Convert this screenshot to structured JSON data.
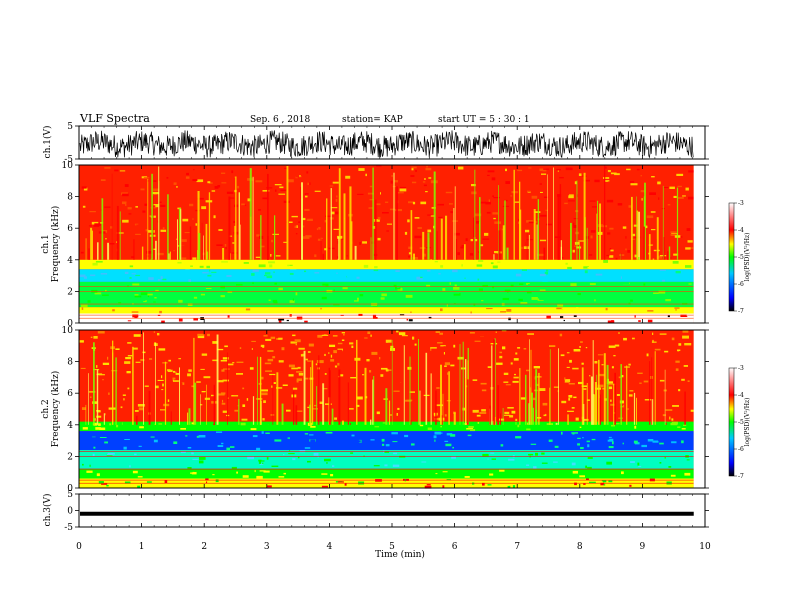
{
  "header": {
    "title": "VLF Spectra",
    "date": "Sep. 6  , 2018",
    "station": "station= KAP",
    "start_time": "start  UT  =   5  : 30 : 1"
  },
  "chart_data": [
    {
      "type": "line",
      "panel": "ch1-waveform",
      "ylabel": "ch.1(V)",
      "ylim": [
        -5,
        5
      ],
      "yticks": [
        5,
        -5
      ],
      "xlim": [
        0,
        10
      ],
      "data_extent_min": [
        0,
        9.82
      ],
      "series": [
        {
          "values_note": "dense noise waveform",
          "mean": -0.5,
          "min": -4.5,
          "max": 4.5
        }
      ]
    },
    {
      "type": "heatmap",
      "panel": "ch1-spectrogram",
      "ylabel": "ch.1\nFrequency  (kHz)",
      "ylim": [
        0,
        10
      ],
      "yticks": [
        0,
        2,
        4,
        6,
        8,
        10
      ],
      "xlim": [
        0,
        10
      ],
      "colorbar": {
        "label": "log(PSD)(V²/Hz)",
        "range": [
          -7,
          -3
        ],
        "ticks": [
          -3,
          -4,
          -5,
          -6,
          -7
        ]
      }
    },
    {
      "type": "heatmap",
      "panel": "ch2-spectrogram",
      "ylabel": "ch.2\nFrequency  (kHz)",
      "ylim": [
        0,
        10
      ],
      "yticks": [
        0,
        2,
        4,
        6,
        8,
        10
      ],
      "xlim": [
        0,
        10
      ],
      "colorbar": {
        "label": "log(PSD)(V²/Hz)",
        "range": [
          -7,
          -3
        ],
        "ticks": [
          -3,
          -4,
          -5,
          -6,
          -7
        ]
      }
    },
    {
      "type": "line",
      "panel": "ch3-waveform",
      "ylabel": "ch.3(V)",
      "ylim": [
        -5,
        5
      ],
      "yticks": [
        5,
        0,
        -5
      ],
      "xlim": [
        0,
        10
      ],
      "series": [
        {
          "values_note": "flat signal",
          "value": -1.0
        }
      ]
    }
  ],
  "x_axis": {
    "label": "Time  (min)",
    "ticks": [
      "0",
      "1",
      "2",
      "3",
      "4",
      "5",
      "6",
      "7",
      "8",
      "9",
      "10"
    ]
  },
  "colors": {
    "colormap": [
      "#000000",
      "#0000ff",
      "#00c8ff",
      "#00ff00",
      "#ffff00",
      "#ff0000",
      "#ffffff"
    ]
  }
}
